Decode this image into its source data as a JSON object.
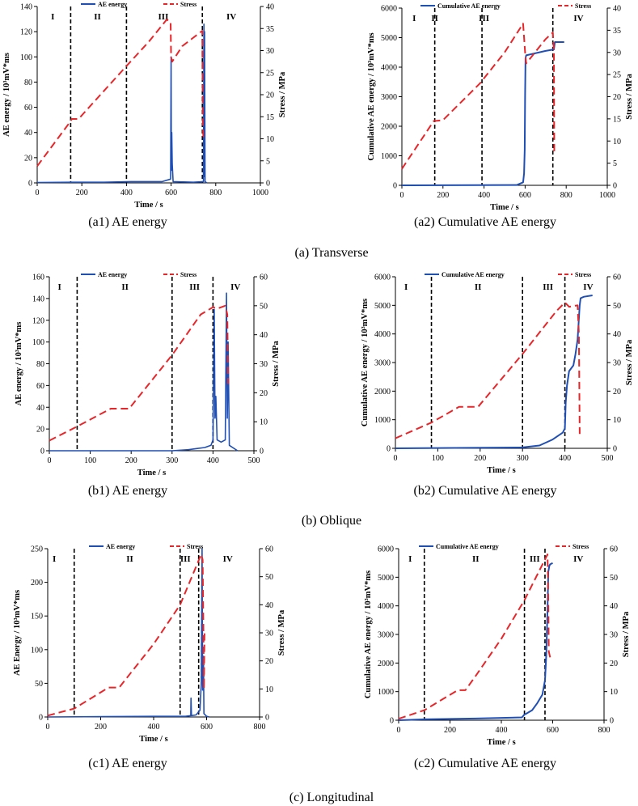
{
  "figure": {
    "group_captions": [
      "(a) Transverse",
      "(b) Oblique",
      "(c) Longitudinal"
    ]
  },
  "chart_data": [
    {
      "type": "line",
      "caption": "(a1) AE energy",
      "xlabel": "Time / s",
      "ylabel": "AE energy / 10³mV*ms",
      "y2label": "Stress / MPa",
      "xlim": [
        0,
        1000
      ],
      "xticks": [
        0,
        200,
        400,
        600,
        800,
        1000
      ],
      "ylim": [
        0,
        140
      ],
      "yticks": [
        0,
        20,
        40,
        60,
        80,
        100,
        120,
        140
      ],
      "y2lim": [
        0,
        40
      ],
      "y2ticks": [
        0,
        5,
        10,
        15,
        20,
        25,
        30,
        35,
        40
      ],
      "legend": [
        "AE energy",
        "Stress"
      ],
      "stage_lines": [
        150,
        400,
        740
      ],
      "stage_labels": [
        {
          "label": "I",
          "x": 70
        },
        {
          "label": "II",
          "x": 270
        },
        {
          "label": "III",
          "x": 565
        },
        {
          "label": "IV",
          "x": 870
        }
      ],
      "primary_series": {
        "name": "AE energy",
        "style": "spike",
        "x": [
          0,
          150,
          300,
          420,
          560,
          598,
          600,
          601,
          603,
          605,
          609,
          700,
          745,
          747,
          748,
          750,
          752,
          760
        ],
        "y": [
          0.3,
          0.5,
          0.5,
          1,
          1,
          3,
          100,
          10,
          40,
          15,
          1,
          0.5,
          1,
          126,
          5,
          120,
          1,
          0
        ]
      },
      "stress_series": {
        "name": "Stress",
        "x": [
          0,
          150,
          155,
          185,
          400,
          500,
          580,
          598,
          600,
          605,
          650,
          740,
          742,
          745
        ],
        "y": [
          3.8,
          14,
          14.5,
          14.5,
          26.5,
          32,
          37,
          36.5,
          28.5,
          27.5,
          31,
          34.5,
          13,
          10
        ]
      }
    },
    {
      "type": "line",
      "caption": "(a2) Cumulative AE energy",
      "xlabel": "Time / s",
      "ylabel": "Cumulative AE energy / 10³mV*ms",
      "y2label": "Stress / MPa",
      "xlim": [
        0,
        1000
      ],
      "xticks": [
        0,
        200,
        400,
        600,
        800,
        1000
      ],
      "ylim": [
        0,
        6000
      ],
      "yticks": [
        0,
        1000,
        2000,
        3000,
        4000,
        5000,
        6000
      ],
      "y2lim": [
        0,
        40
      ],
      "y2ticks": [
        0,
        5,
        10,
        15,
        20,
        25,
        30,
        35,
        40
      ],
      "legend": [
        "Cumulative AE energy",
        "Stress"
      ],
      "stage_lines": [
        160,
        390,
        735
      ],
      "stage_labels": [
        {
          "label": "I",
          "x": 60
        },
        {
          "label": "II",
          "x": 160
        },
        {
          "label": "III",
          "x": 400
        },
        {
          "label": "IV",
          "x": 860
        }
      ],
      "primary_series": {
        "name": "Cumulative AE energy",
        "style": "line",
        "x": [
          0,
          560,
          590,
          595,
          598,
          600,
          602,
          605,
          700,
          740,
          745,
          760,
          790
        ],
        "y": [
          0,
          10,
          100,
          400,
          1200,
          3100,
          4300,
          4400,
          4550,
          4600,
          4850,
          4850,
          4850
        ]
      },
      "stress_series": {
        "name": "Stress",
        "x": [
          0,
          155,
          200,
          380,
          500,
          590,
          600,
          605,
          700,
          735,
          740,
          742
        ],
        "y": [
          3.7,
          14.5,
          14.7,
          23,
          30,
          36.5,
          30,
          27.5,
          33,
          34.5,
          30,
          7
        ]
      }
    },
    {
      "type": "line",
      "caption": "(b1) AE energy",
      "xlabel": "Time  /  s",
      "ylabel": "AE energy / 10³mV*ms",
      "y2label": "Stress / MPa",
      "xlim": [
        0,
        500
      ],
      "xticks": [
        0,
        100,
        200,
        300,
        400,
        500
      ],
      "ylim": [
        0,
        160
      ],
      "yticks": [
        0,
        20,
        40,
        60,
        80,
        100,
        120,
        140,
        160
      ],
      "y2lim": [
        0,
        60
      ],
      "y2ticks": [
        0,
        10,
        20,
        30,
        40,
        50,
        60
      ],
      "legend": [
        "AE energy",
        "Stress"
      ],
      "stage_lines": [
        68,
        300,
        400
      ],
      "stage_labels": [
        {
          "label": "I",
          "x": 25
        },
        {
          "label": "II",
          "x": 185
        },
        {
          "label": "III",
          "x": 355
        },
        {
          "label": "IV",
          "x": 455
        }
      ],
      "primary_series": {
        "name": "AE energy",
        "style": "spike",
        "x": [
          0,
          300,
          340,
          360,
          380,
          395,
          400,
          403,
          405,
          407,
          410,
          420,
          430,
          433,
          435,
          437,
          440,
          460
        ],
        "y": [
          0,
          0,
          1,
          2,
          3,
          5,
          10,
          130,
          30,
          50,
          10,
          8,
          10,
          145,
          30,
          100,
          5,
          0
        ]
      },
      "stress_series": {
        "name": "Stress",
        "x": [
          0,
          70,
          150,
          195,
          300,
          370,
          400,
          410,
          430,
          435,
          437
        ],
        "y": [
          3.5,
          8.5,
          14.5,
          14.5,
          33,
          47,
          49.5,
          49,
          50,
          47,
          23
        ]
      }
    },
    {
      "type": "line",
      "caption": "(b2) Cumulative AE energy",
      "xlabel": "Time  /  s",
      "ylabel": "Cumulative AE energy / 10³mV*ms",
      "y2label": "Stress / MPa",
      "xlim": [
        0,
        500
      ],
      "xticks": [
        0,
        100,
        200,
        300,
        400,
        500
      ],
      "ylim": [
        0,
        6000
      ],
      "yticks": [
        0,
        1000,
        2000,
        3000,
        4000,
        5000,
        6000
      ],
      "y2lim": [
        0,
        60
      ],
      "y2ticks": [
        0,
        10,
        20,
        30,
        40,
        50,
        60
      ],
      "legend": [
        "Cumulative AE energy",
        "Stress"
      ],
      "stage_lines": [
        85,
        300,
        400
      ],
      "stage_labels": [
        {
          "label": "I",
          "x": 25
        },
        {
          "label": "II",
          "x": 195
        },
        {
          "label": "III",
          "x": 360
        },
        {
          "label": "IV",
          "x": 455
        }
      ],
      "primary_series": {
        "name": "Cumulative AE energy",
        "style": "line",
        "x": [
          0,
          300,
          340,
          370,
          395,
          400,
          402,
          405,
          410,
          420,
          425,
          430,
          435,
          437,
          445,
          465
        ],
        "y": [
          0,
          30,
          100,
          300,
          550,
          700,
          1600,
          2200,
          2700,
          2900,
          3300,
          3800,
          5000,
          5250,
          5300,
          5350
        ]
      },
      "stress_series": {
        "name": "Stress",
        "x": [
          0,
          85,
          150,
          195,
          300,
          380,
          400,
          410,
          430,
          433,
          435
        ],
        "y": [
          3.5,
          9,
          14.5,
          14.5,
          33,
          48,
          51,
          49.5,
          50,
          40,
          5
        ]
      }
    },
    {
      "type": "line",
      "caption": "(c1) AE energy",
      "xlabel": "Time / s",
      "ylabel": "AE Energy / 10³mV*ms",
      "y2label": "Stress / MPa",
      "xlim": [
        0,
        800
      ],
      "xticks": [
        0,
        200,
        400,
        600,
        800
      ],
      "ylim": [
        0,
        250
      ],
      "yticks": [
        0,
        50,
        100,
        150,
        200,
        250
      ],
      "y2lim": [
        0,
        60
      ],
      "y2ticks": [
        0,
        10,
        20,
        30,
        40,
        50,
        60
      ],
      "legend": [
        "AE energy",
        "Stress"
      ],
      "stage_lines": [
        100,
        500,
        570
      ],
      "stage_labels": [
        {
          "label": "I",
          "x": 25
        },
        {
          "label": "II",
          "x": 310
        },
        {
          "label": "III",
          "x": 520
        },
        {
          "label": "IV",
          "x": 680
        }
      ],
      "primary_series": {
        "name": "AE energy",
        "style": "spike",
        "x": [
          0,
          400,
          520,
          540,
          541,
          543,
          560,
          575,
          580,
          583,
          585,
          588,
          590,
          600,
          610
        ],
        "y": [
          0,
          1,
          1,
          2,
          28,
          2,
          3,
          10,
          50,
          250,
          40,
          90,
          5,
          1,
          0
        ]
      },
      "stress_series": {
        "name": "Stress",
        "x": [
          0,
          100,
          230,
          270,
          400,
          500,
          580,
          585,
          588,
          590,
          592
        ],
        "y": [
          0.5,
          3,
          10.5,
          10.5,
          26,
          40,
          58,
          56,
          30,
          10,
          30
        ]
      }
    },
    {
      "type": "line",
      "caption": "(c2) Cumulative AE energy",
      "xlabel": "Time  /  s",
      "ylabel": "Cumulative AE energy / 10³mV*ms",
      "y2label": "Stress / MPa",
      "xlim": [
        0,
        800
      ],
      "xticks": [
        0,
        200,
        400,
        600,
        800
      ],
      "ylim": [
        0,
        6000
      ],
      "yticks": [
        0,
        1000,
        2000,
        3000,
        4000,
        5000,
        6000
      ],
      "y2lim": [
        0,
        60
      ],
      "y2ticks": [
        0,
        10,
        20,
        30,
        40,
        50,
        60
      ],
      "legend": [
        "Cumulative AE energy",
        "Stress"
      ],
      "stage_lines": [
        100,
        490,
        570
      ],
      "stage_labels": [
        {
          "label": "I",
          "x": 45
        },
        {
          "label": "II",
          "x": 300
        },
        {
          "label": "III",
          "x": 530
        },
        {
          "label": "IV",
          "x": 700
        }
      ],
      "primary_series": {
        "name": "Cumulative AE energy",
        "style": "line",
        "x": [
          0,
          100,
          300,
          480,
          490,
          495,
          520,
          540,
          560,
          570,
          575,
          580,
          583,
          587,
          590,
          600
        ],
        "y": [
          0,
          30,
          60,
          100,
          200,
          220,
          350,
          600,
          900,
          1400,
          2300,
          3900,
          5200,
          5400,
          5450,
          5500
        ]
      },
      "stress_series": {
        "name": "Stress",
        "x": [
          0,
          100,
          230,
          260,
          300,
          400,
          490,
          580,
          582,
          585,
          590
        ],
        "y": [
          0.5,
          3.5,
          10.5,
          10.5,
          15.5,
          28.5,
          42,
          58,
          48,
          24,
          22
        ]
      }
    }
  ]
}
